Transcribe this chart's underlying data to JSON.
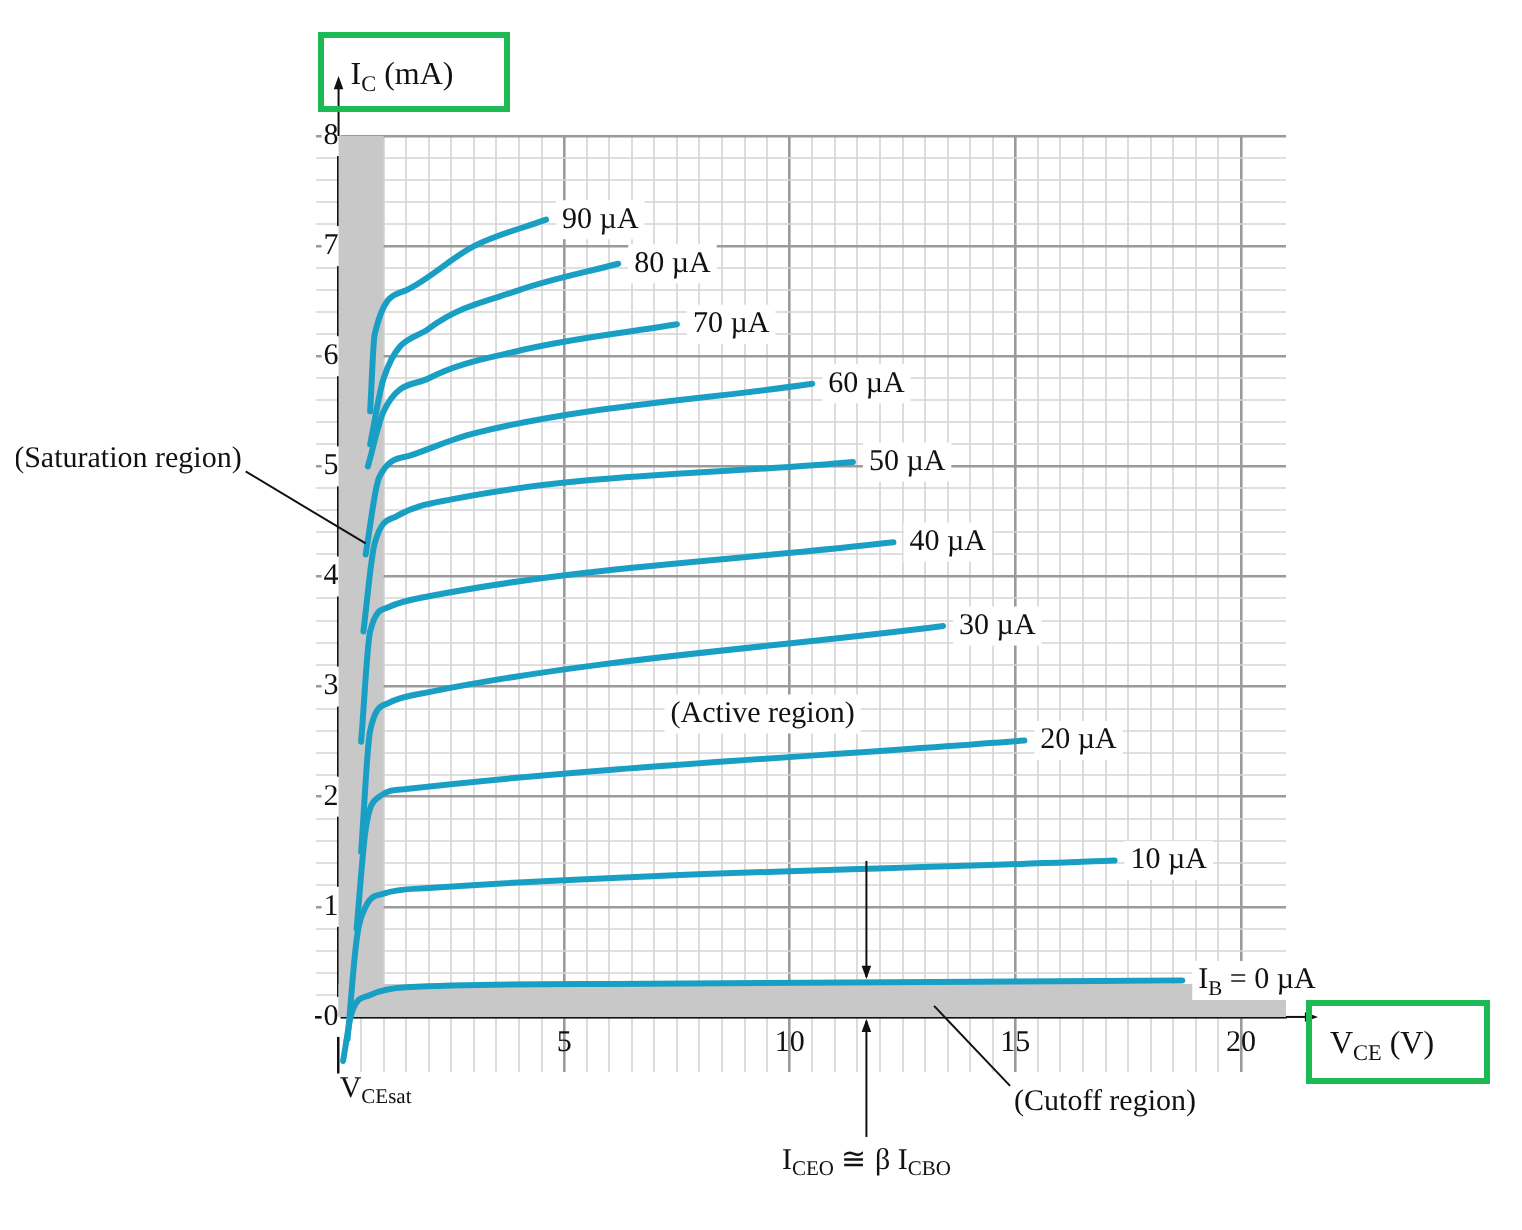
{
  "chart_data": {
    "type": "line",
    "xlabel": "V$_{CE}$ (V)",
    "ylabel": "I$_{C}$ (mA)",
    "xlim": [
      -0.5,
      21
    ],
    "ylim": [
      -0.5,
      8
    ],
    "xticks": [
      {
        "value": 0,
        "label": null
      },
      {
        "value": 0.5,
        "label": null
      },
      {
        "value": 1,
        "label": null
      },
      {
        "value": 1.5,
        "label": null
      },
      {
        "value": 2,
        "label": null
      },
      {
        "value": 2.5,
        "label": null
      },
      {
        "value": 3,
        "label": null
      },
      {
        "value": 3.5,
        "label": null
      },
      {
        "value": 4,
        "label": null
      },
      {
        "value": 4.5,
        "label": null
      },
      5,
      {
        "value": 5.5,
        "label": null
      },
      {
        "value": 6,
        "label": null
      },
      {
        "value": 6.5,
        "label": null
      },
      {
        "value": 7,
        "label": null
      },
      {
        "value": 7.5,
        "label": null
      },
      {
        "value": 8,
        "label": null
      },
      {
        "value": 8.5,
        "label": null
      },
      {
        "value": 9,
        "label": null
      },
      {
        "value": 9.5,
        "label": null
      },
      10,
      {
        "value": 10.5,
        "label": null
      },
      {
        "value": 11,
        "label": null
      },
      {
        "value": 11.5,
        "label": null
      },
      {
        "value": 12,
        "label": null
      },
      {
        "value": 12.5,
        "label": null
      },
      {
        "value": 13,
        "label": null
      },
      {
        "value": 13.5,
        "label": null
      },
      {
        "value": 14,
        "label": null
      },
      {
        "value": 14.5,
        "label": null
      },
      15,
      {
        "value": 15.5,
        "label": null
      },
      {
        "value": 16,
        "label": null
      },
      {
        "value": 16.5,
        "label": null
      },
      {
        "value": 17,
        "label": null
      },
      {
        "value": 17.5,
        "label": null
      },
      {
        "value": 18,
        "label": null
      },
      {
        "value": 18.5,
        "label": null
      },
      {
        "value": 19,
        "label": null
      },
      {
        "value": 19.5,
        "label": null
      },
      20
    ],
    "yticks": [
      0,
      {
        "value": 0.2,
        "label": null
      },
      {
        "value": 0.4,
        "label": null
      },
      {
        "value": 0.6,
        "label": null
      },
      {
        "value": 0.8,
        "label": null
      },
      1,
      {
        "value": 1.2,
        "label": null
      },
      {
        "value": 1.4,
        "label": null
      },
      {
        "value": 1.6,
        "label": null
      },
      {
        "value": 1.8,
        "label": null
      },
      2,
      {
        "value": 2.2,
        "label": null
      },
      {
        "value": 2.4,
        "label": null
      },
      {
        "value": 2.6,
        "label": null
      },
      {
        "value": 2.8,
        "label": null
      },
      3,
      {
        "value": 3.2,
        "label": null
      },
      {
        "value": 3.4,
        "label": null
      },
      {
        "value": 3.6,
        "label": null
      },
      {
        "value": 3.8,
        "label": null
      },
      4,
      {
        "value": 4.2,
        "label": null
      },
      {
        "value": 4.4,
        "label": null
      },
      {
        "value": 4.6,
        "label": null
      },
      {
        "value": 4.8,
        "label": null
      },
      5,
      {
        "value": 5.2,
        "label": null
      },
      {
        "value": 5.4,
        "label": null
      },
      {
        "value": 5.6,
        "label": null
      },
      {
        "value": 5.8,
        "label": null
      },
      6,
      {
        "value": 6.2,
        "label": null
      },
      {
        "value": 6.4,
        "label": null
      },
      {
        "value": 6.6,
        "label": null
      },
      {
        "value": 6.8,
        "label": null
      },
      7,
      {
        "value": 7.2,
        "label": null
      },
      {
        "value": 7.4,
        "label": null
      },
      {
        "value": 7.6,
        "label": null
      },
      {
        "value": 7.8,
        "label": null
      },
      8
    ],
    "grid": true,
    "legend": false,
    "marker": "none",
    "line_style": "solid",
    "bands": [
      {
        "axis": "x",
        "from": 0,
        "to": 1,
        "label": null,
        "color": "#c8c8c8"
      },
      {
        "axis": "y",
        "from": 0,
        "to": 0.3,
        "label": null,
        "color": "#c8c8c8"
      }
    ],
    "annotations": [
      {
        "text": "(Saturation region)",
        "x": 0.6,
        "y": 4.3
      },
      "(Active region)",
      "(Cutoff region)",
      {
        "text": "I$_{CEO}$ ≅ β I$_{CBO}$",
        "x": 11.7,
        "y": 0
      },
      {
        "text": "V$_{CE}$$_{sat}$",
        "x": 1,
        "y": 0
      }
    ],
    "series": [
      {
        "name": "I$_{B}$ = 0 µA",
        "color": "#1a9fc4",
        "x": [
          0.1,
          0.3,
          0.7,
          1.5,
          6,
          18.7
        ],
        "values": [
          -0.4,
          0.05,
          0.2,
          0.27,
          0.3,
          0.33
        ]
      },
      {
        "name": "10 µA",
        "color": "#1a9fc4",
        "x": [
          0.2,
          0.4,
          0.6,
          1,
          2,
          17.2
        ],
        "values": [
          -0.2,
          0.7,
          1,
          1.12,
          1.17,
          1.42
        ]
      },
      {
        "name": "20 µA",
        "color": "#1a9fc4",
        "x": [
          0.4,
          0.6,
          0.9,
          1.5,
          15.2
        ],
        "values": [
          0.8,
          1.7,
          2,
          2.07,
          2.51
        ]
      },
      {
        "name": "30 µA",
        "color": "#1a9fc4",
        "x": [
          0.5,
          0.7,
          1.1,
          2,
          13.4
        ],
        "values": [
          1.5,
          2.6,
          2.85,
          2.95,
          3.55
        ]
      },
      {
        "name": "40 µA",
        "color": "#1a9fc4",
        "x": [
          0.5,
          0.7,
          1.1,
          2,
          12.3
        ],
        "values": [
          2.5,
          3.5,
          3.72,
          3.82,
          4.31
        ]
      },
      {
        "name": "50 µA",
        "color": "#1a9fc4",
        "x": [
          0.55,
          0.8,
          1.3,
          2.5,
          11.4
        ],
        "values": [
          3.5,
          4.3,
          4.55,
          4.7,
          5.04
        ]
      },
      {
        "name": "60 µA",
        "color": "#1a9fc4",
        "x": [
          0.6,
          0.9,
          1.6,
          3,
          10.5
        ],
        "values": [
          4.2,
          4.9,
          5.1,
          5.3,
          5.75
        ]
      },
      {
        "name": "70 µA",
        "color": "#1a9fc4",
        "x": [
          0.65,
          1,
          2,
          4,
          7.5
        ],
        "values": [
          5,
          5.5,
          5.8,
          6.05,
          6.29
        ]
      },
      {
        "name": "80 µA",
        "color": "#1a9fc4",
        "x": [
          0.7,
          1,
          2,
          4,
          6.2
        ],
        "values": [
          5.2,
          5.8,
          6.25,
          6.6,
          6.84
        ]
      },
      {
        "name": "90 µA",
        "color": "#1a9fc4",
        "x": [
          0.7,
          0.8,
          1.5,
          3,
          4.6
        ],
        "values": [
          5.5,
          6.2,
          6.6,
          7,
          7.24
        ]
      }
    ]
  }
}
